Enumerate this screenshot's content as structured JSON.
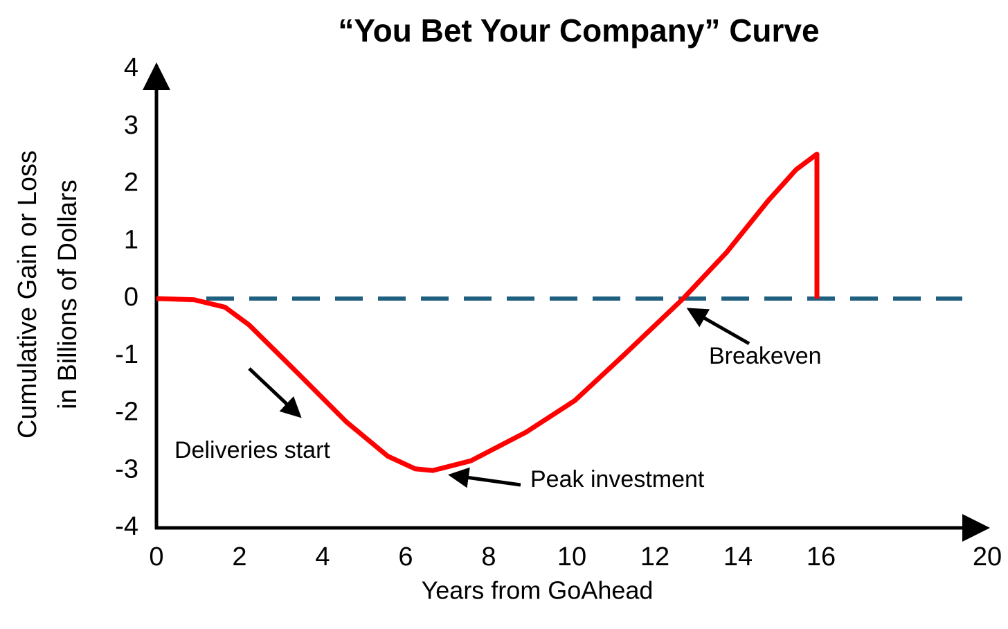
{
  "chart_data": {
    "type": "line",
    "title": "“You Bet Your Company” Curve",
    "xlabel": "Years from GoAhead",
    "ylabel": [
      "Cumulative Gain or Loss",
      "in Billions of Dollars"
    ],
    "x": [
      0,
      0.9,
      1.65,
      2.23,
      3.4,
      4.57,
      5.57,
      6.23,
      6.65,
      7.57,
      8.9,
      10.07,
      11.23,
      12.68,
      13.73,
      14.73,
      15.4,
      15.9,
      15.9
    ],
    "series": [
      {
        "color": "#ff0000",
        "values": [
          0,
          -0.02,
          -0.15,
          -0.46,
          -1.3,
          -2.15,
          -2.75,
          -2.97,
          -3.0,
          -2.83,
          -2.33,
          -1.78,
          -1.0,
          0,
          0.81,
          1.71,
          2.25,
          2.52,
          0
        ]
      }
    ],
    "xlim": [
      0,
      20
    ],
    "xticks": [
      0,
      2,
      4,
      6,
      8,
      10,
      12,
      14,
      16,
      20
    ],
    "ylim": [
      -4,
      4
    ],
    "yticks": [
      -4,
      -3,
      -2,
      -1,
      0,
      1,
      2,
      3,
      4
    ],
    "zero_line": {
      "color": "#1f5f7f",
      "dashed": true
    },
    "annotations": [
      "Deliveries start",
      "Peak investment",
      "Breakeven"
    ]
  }
}
